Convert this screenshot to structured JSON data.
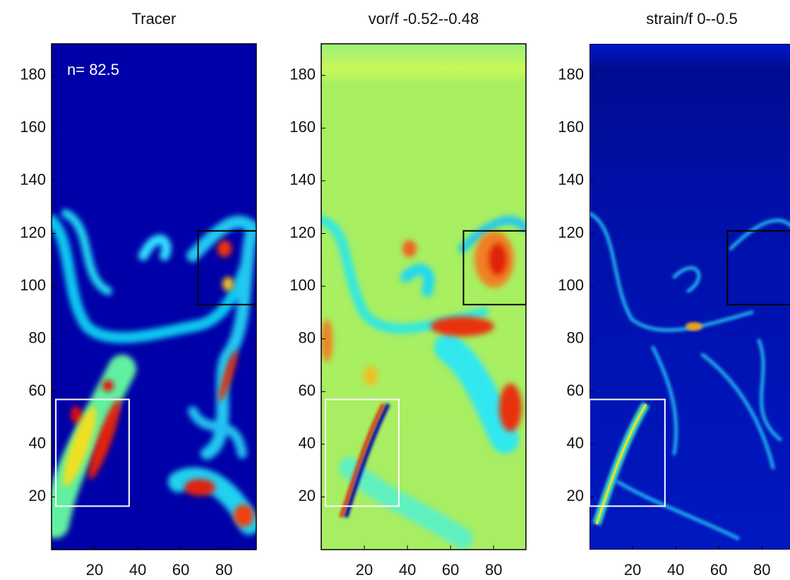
{
  "chart_data": [
    {
      "type": "image",
      "title": "Tracer",
      "annotation": "n= 82.5",
      "xlim": [
        0,
        95
      ],
      "ylim": [
        0,
        192
      ],
      "xticks": [
        20,
        40,
        60,
        80
      ],
      "yticks": [
        20,
        40,
        60,
        80,
        100,
        120,
        140,
        160,
        180
      ],
      "boxes": [
        {
          "xlim": [
            2,
            36
          ],
          "ylim": [
            16.5,
            57
          ],
          "color": "#ffffff"
        },
        {
          "xlim": [
            68,
            96
          ],
          "ylim": [
            93,
            121
          ],
          "color": "#000000"
        }
      ]
    },
    {
      "type": "image",
      "title": "vor/f  -0.52--0.48",
      "xlim": [
        0,
        95
      ],
      "ylim": [
        0,
        192
      ],
      "xticks": [
        20,
        40,
        60,
        80
      ],
      "yticks": [
        20,
        40,
        60,
        80,
        100,
        120,
        140,
        160,
        180
      ],
      "boxes": [
        {
          "xlim": [
            2,
            36
          ],
          "ylim": [
            16.5,
            57
          ],
          "color": "#ffffff"
        },
        {
          "xlim": [
            66,
            95
          ],
          "ylim": [
            93,
            121
          ],
          "color": "#000000"
        }
      ]
    },
    {
      "type": "image",
      "title": "strain/f  0--0.5",
      "xlim": [
        0,
        95
      ],
      "ylim": [
        0,
        192
      ],
      "xticks": [
        20,
        40,
        60,
        80
      ],
      "yticks": [
        20,
        40,
        60,
        80,
        100,
        120,
        140,
        160,
        180
      ],
      "boxes": [
        {
          "xlim": [
            0,
            35
          ],
          "ylim": [
            16.5,
            57
          ],
          "color": "#ffffff"
        },
        {
          "xlim": [
            64,
            95
          ],
          "ylim": [
            93,
            121
          ],
          "color": "#000000"
        }
      ]
    }
  ]
}
